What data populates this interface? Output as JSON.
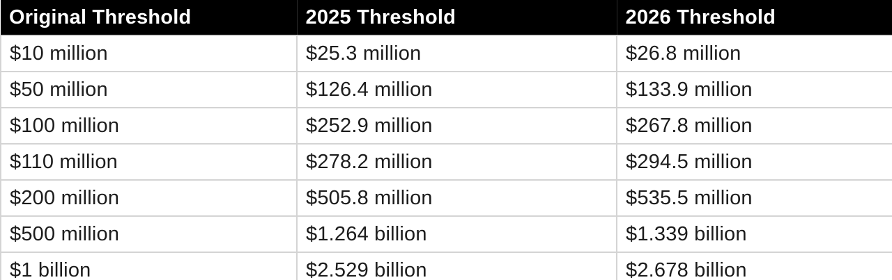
{
  "chart_data": {
    "type": "table",
    "columns": [
      "Original Threshold",
      "2025 Threshold",
      "2026 Threshold"
    ],
    "rows": [
      [
        "$10 million",
        "$25.3 million",
        "$26.8 million"
      ],
      [
        "$50 million",
        "$126.4 million",
        "$133.9 million"
      ],
      [
        "$100 million",
        "$252.9 million",
        "$267.8 million"
      ],
      [
        "$110 million",
        "$278.2 million",
        "$294.5 million"
      ],
      [
        "$200 million",
        "$505.8 million",
        "$535.5 million"
      ],
      [
        "$500 million",
        "$1.264 billion",
        "$1.339 billion"
      ],
      [
        "$1 billion",
        "$2.529 billion",
        "$2.678 billion"
      ]
    ],
    "colors": {
      "header_bg": "#000000",
      "header_text": "#ffffff",
      "body_text": "#1c1c1c",
      "border": "#d4d4d4",
      "row_bg": "#ffffff"
    },
    "layout": {
      "grid": true,
      "header_position": "top",
      "column_alignment": [
        "left",
        "left",
        "left"
      ]
    }
  }
}
